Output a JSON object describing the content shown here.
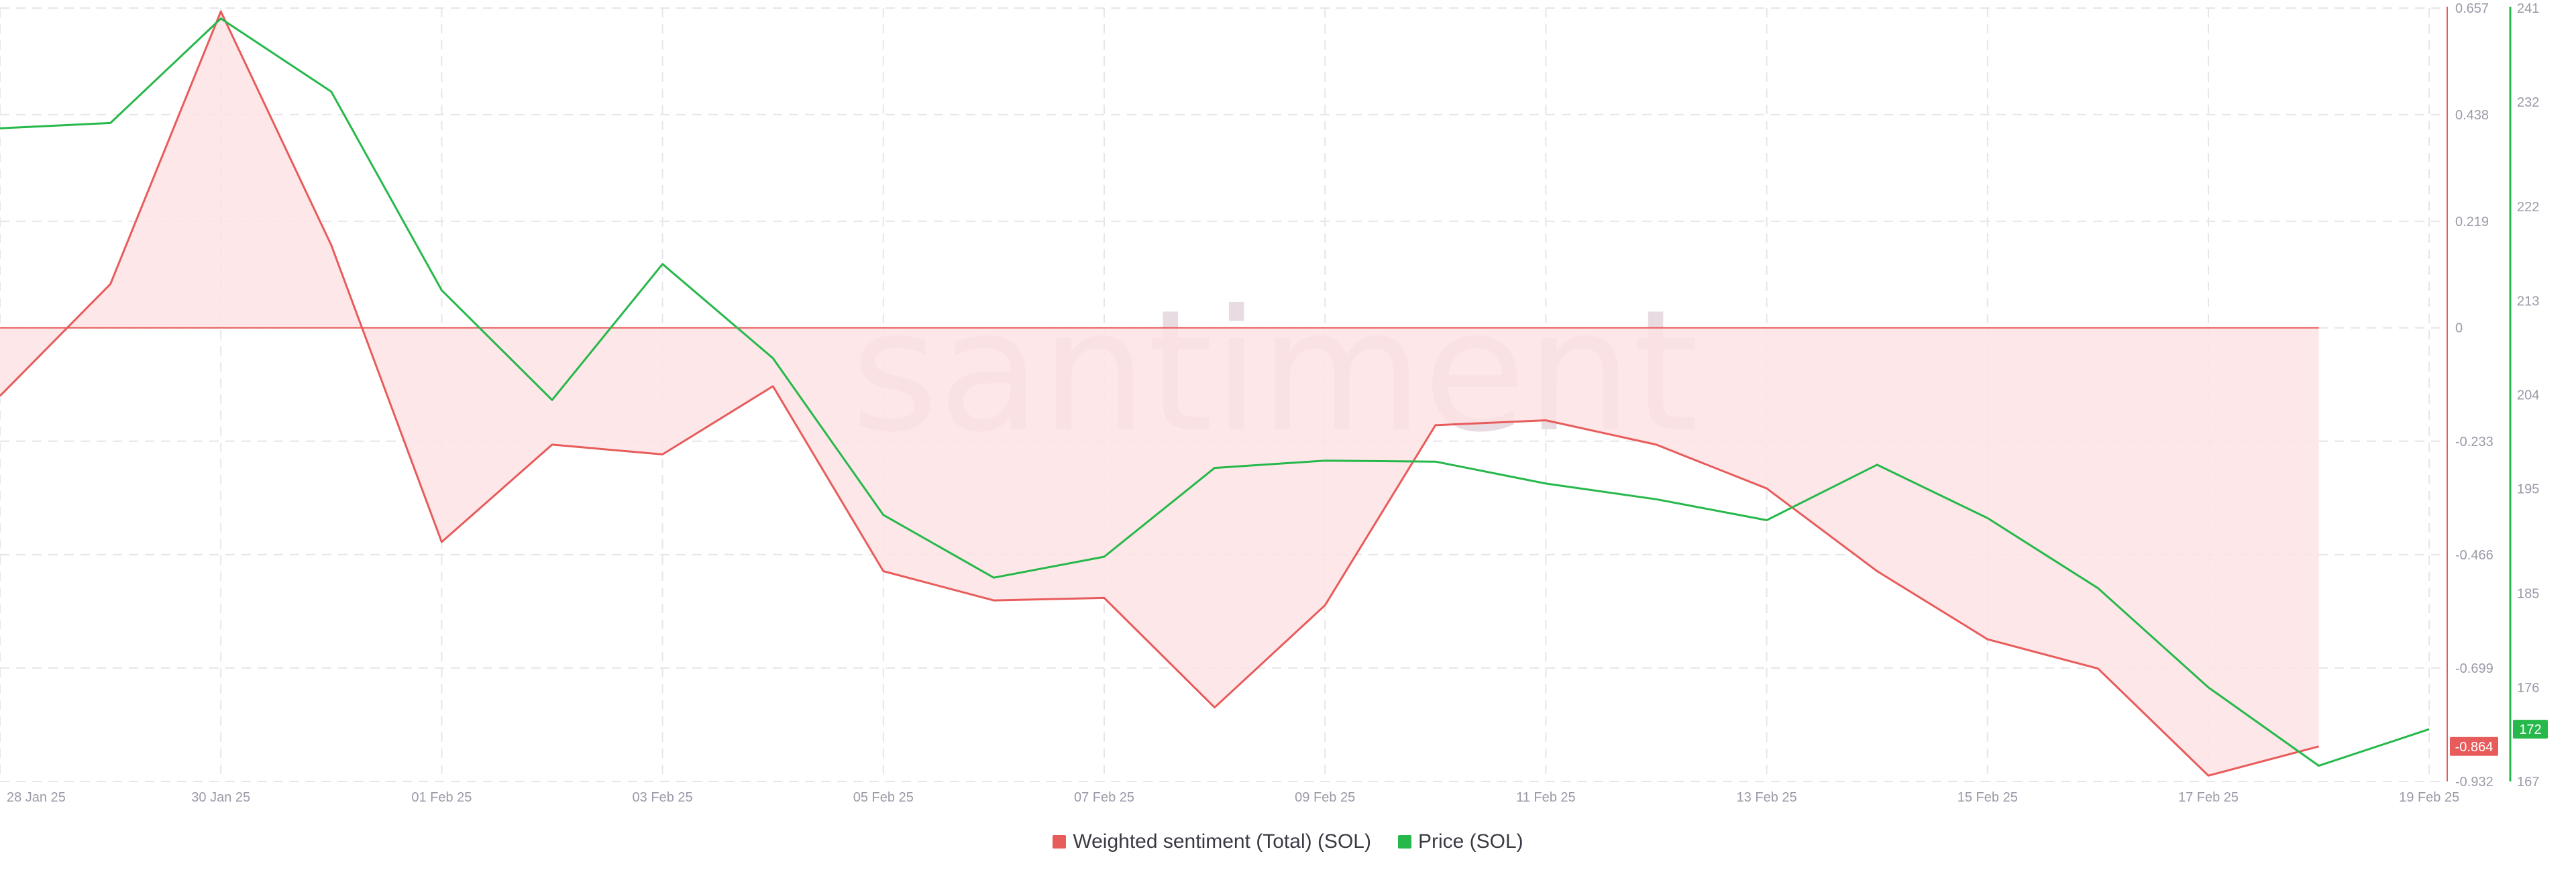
{
  "watermark": "santiment",
  "colors": {
    "sentiment": "#e85b5b",
    "sentiment_fill": "#fde3e4",
    "price": "#26b84a",
    "grid": "#e6e6ea",
    "tick_text": "#9a9aa8"
  },
  "legend": [
    {
      "label": "Weighted sentiment (Total) (SOL)",
      "color": "#e85b5b"
    },
    {
      "label": "Price (SOL)",
      "color": "#26b84a"
    }
  ],
  "badges": {
    "sentiment_last": "-0.864",
    "price_last": "172"
  },
  "chart_data": {
    "type": "line",
    "x_ticks": [
      "28 Jan 25",
      "30 Jan 25",
      "01 Feb 25",
      "03 Feb 25",
      "05 Feb 25",
      "07 Feb 25",
      "09 Feb 25",
      "11 Feb 25",
      "13 Feb 25",
      "15 Feb 25",
      "17 Feb 25",
      "19 Feb 25"
    ],
    "dates": [
      "28 Jan 25",
      "29 Jan 25",
      "30 Jan 25",
      "31 Jan 25",
      "01 Feb 25",
      "02 Feb 25",
      "03 Feb 25",
      "04 Feb 25",
      "05 Feb 25",
      "06 Feb 25",
      "07 Feb 25",
      "08 Feb 25",
      "09 Feb 25",
      "10 Feb 25",
      "11 Feb 25",
      "12 Feb 25",
      "13 Feb 25",
      "14 Feb 25",
      "15 Feb 25",
      "16 Feb 25",
      "17 Feb 25",
      "18 Feb 25",
      "19 Feb 25"
    ],
    "series": [
      {
        "name": "Weighted sentiment (Total) (SOL)",
        "axis": "left",
        "values": [
          -0.14,
          0.09,
          0.65,
          0.17,
          -0.44,
          -0.24,
          -0.26,
          -0.12,
          -0.5,
          -0.56,
          -0.555,
          -0.78,
          -0.57,
          -0.2,
          -0.19,
          -0.24,
          -0.33,
          -0.5,
          -0.64,
          -0.7,
          -0.92,
          -0.86,
          null
        ]
      },
      {
        "name": "Price (SOL)",
        "axis": "right",
        "values": [
          229.5,
          230,
          240,
          233,
          214,
          203.5,
          216.5,
          207.5,
          192.5,
          186.5,
          188.5,
          197,
          197.7,
          197.6,
          195.5,
          194,
          192,
          197.3,
          192.2,
          185.5,
          176,
          168.5,
          172
        ]
      }
    ],
    "y_left": {
      "ticks": [
        "0.657",
        "0.438",
        "0.219",
        "0",
        "-0.233",
        "-0.466",
        "-0.699",
        "-0.932"
      ],
      "range": [
        -0.932,
        0.657
      ]
    },
    "y_right": {
      "ticks": [
        "241",
        "232",
        "222",
        "213",
        "204",
        "195",
        "185",
        "176",
        "167"
      ],
      "range": [
        167,
        241
      ]
    },
    "grid": true,
    "legend_position": "bottom-center"
  }
}
